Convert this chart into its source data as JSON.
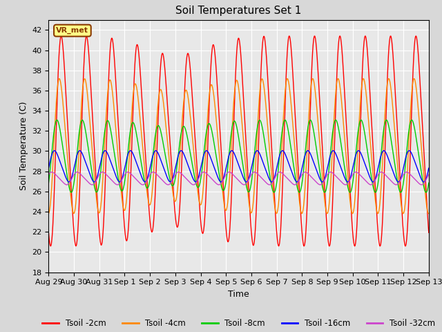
{
  "title": "Soil Temperatures Set 1",
  "xlabel": "Time",
  "ylabel": "Soil Temperature (C)",
  "ylim": [
    18,
    43
  ],
  "yticks": [
    18,
    20,
    22,
    24,
    26,
    28,
    30,
    32,
    34,
    36,
    38,
    40,
    42
  ],
  "background_color": "#d8d8d8",
  "plot_bg_color": "#e8e8e8",
  "annotation_text": "VR_met",
  "legend_entries": [
    "Tsoil -2cm",
    "Tsoil -4cm",
    "Tsoil -8cm",
    "Tsoil -16cm",
    "Tsoil -32cm"
  ],
  "line_colors": [
    "#ff0000",
    "#ff8800",
    "#00cc00",
    "#0000ff",
    "#cc44cc"
  ],
  "days": [
    "Aug 29",
    "Aug 30",
    "Aug 31",
    "Sep 1",
    "Sep 2",
    "Sep 3",
    "Sep 4",
    "Sep 5",
    "Sep 6",
    "Sep 7",
    "Sep 8",
    "Sep 9",
    "Sep 10",
    "Sep 11",
    "Sep 12",
    "Sep 13"
  ],
  "grid_color": "#ffffff",
  "figsize": [
    6.4,
    4.8
  ],
  "dpi": 100
}
